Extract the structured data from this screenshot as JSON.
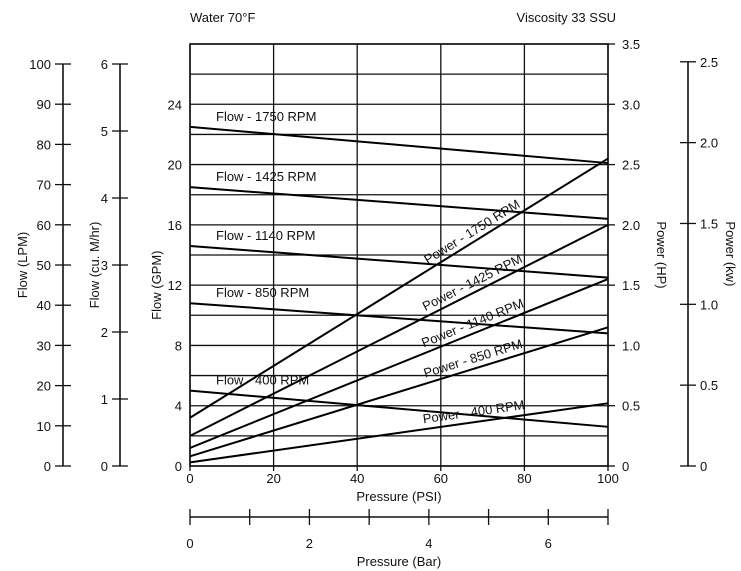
{
  "header": {
    "left_note": "Water 70°F",
    "right_note": "Viscosity 33 SSU"
  },
  "chart_data": {
    "type": "line",
    "title": "",
    "xlabel": "Pressure (PSI)",
    "xlim": [
      0,
      100
    ],
    "x_ticks": [
      0,
      20,
      40,
      60,
      80,
      100
    ],
    "secondary_x": {
      "label": "Pressure (Bar)",
      "ticks": [
        0,
        2,
        4,
        6
      ],
      "minor_ticks": [
        1,
        3,
        5,
        7
      ]
    },
    "ylabel": "Flow (GPM)",
    "ylim": [
      0,
      28
    ],
    "y_ticks": [
      0,
      4,
      8,
      12,
      16,
      20,
      24
    ],
    "y_gridlines": [
      0,
      2,
      4,
      6,
      8,
      10,
      12,
      14,
      16,
      18,
      20,
      22,
      24,
      26,
      28
    ],
    "right_axis": {
      "label": "Power (HP)",
      "ylim": [
        0,
        3.5
      ],
      "ticks": [
        0,
        0.5,
        1.0,
        1.5,
        2.0,
        2.5,
        3.0,
        3.5
      ],
      "tick_labels": [
        "0",
        "0.5",
        "1.0",
        "1.5",
        "2.0",
        "2.5",
        "3.0",
        "3.5"
      ]
    },
    "side_scales": [
      {
        "label": "Flow (LPM)",
        "ticks": [
          0,
          10,
          20,
          30,
          40,
          50,
          60,
          70,
          80,
          90,
          100
        ],
        "ylim": [
          0,
          100
        ]
      },
      {
        "label": "Flow (cu. M/hr)",
        "ticks": [
          0,
          1,
          2,
          3,
          4,
          5,
          6
        ],
        "ylim": [
          0,
          6
        ]
      },
      {
        "label": "Power (kw)",
        "ticks": [
          0,
          0.5,
          1.0,
          1.5,
          2.0,
          2.5
        ],
        "tick_labels": [
          "0",
          "0.5",
          "1.0",
          "1.5",
          "2.0",
          "2.5"
        ],
        "ylim": [
          0,
          2.5
        ]
      }
    ],
    "grid": true,
    "flow_series": [
      {
        "name": "Flow - 1750 RPM",
        "x": [
          0,
          100
        ],
        "y": [
          22.5,
          20.1
        ]
      },
      {
        "name": "Flow - 1425 RPM",
        "x": [
          0,
          100
        ],
        "y": [
          18.5,
          16.4
        ]
      },
      {
        "name": "Flow - 1140 RPM",
        "x": [
          0,
          100
        ],
        "y": [
          14.6,
          12.5
        ]
      },
      {
        "name": "Flow - 850 RPM",
        "x": [
          0,
          100
        ],
        "y": [
          10.8,
          8.8
        ]
      },
      {
        "name": "Flow - 400 RPM",
        "x": [
          0,
          100
        ],
        "y": [
          5.0,
          2.6
        ]
      }
    ],
    "power_series": [
      {
        "name": "Power - 1750 RPM",
        "x": [
          0,
          100
        ],
        "y": [
          0.4,
          2.55
        ]
      },
      {
        "name": "Power - 1425 RPM",
        "x": [
          0,
          100
        ],
        "y": [
          0.25,
          2.0
        ]
      },
      {
        "name": "Power - 1140 RPM",
        "x": [
          0,
          100
        ],
        "y": [
          0.15,
          1.55
        ]
      },
      {
        "name": "Power - 850 RPM",
        "x": [
          0,
          100
        ],
        "y": [
          0.08,
          1.15
        ]
      },
      {
        "name": "Power - 400 RPM",
        "x": [
          0,
          100
        ],
        "y": [
          0.03,
          0.52
        ]
      }
    ]
  }
}
